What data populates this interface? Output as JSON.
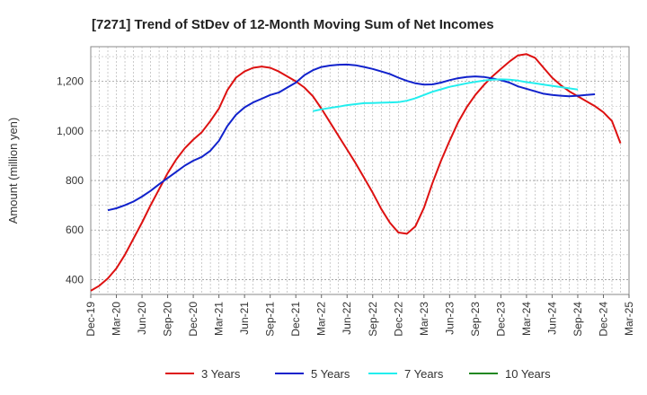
{
  "chart_data": {
    "type": "line",
    "title": "[7271]  Trend of StDev of 12-Month Moving Sum of Net Incomes",
    "ylabel": "Amount (million yen)",
    "xlabel": "",
    "ylim": [
      340,
      1340
    ],
    "yticks": [
      400,
      600,
      800,
      1000,
      1200
    ],
    "ytick_labels": [
      "400",
      "600",
      "800",
      "1,000",
      "1,200"
    ],
    "xlim": [
      "2019-12",
      "2025-03"
    ],
    "xtick_labels": [
      "Dec-19",
      "Mar-20",
      "Jun-20",
      "Sep-20",
      "Dec-20",
      "Mar-21",
      "Jun-21",
      "Sep-21",
      "Dec-21",
      "Mar-22",
      "Jun-22",
      "Sep-22",
      "Dec-22",
      "Mar-23",
      "Jun-23",
      "Sep-23",
      "Dec-23",
      "Mar-24",
      "Jun-24",
      "Sep-24",
      "Dec-24",
      "Mar-25"
    ],
    "grid": true,
    "legend_position": "bottom",
    "series": [
      {
        "name": "3 Years",
        "color": "#dd1111",
        "start": "2019-12",
        "values": [
          355,
          375,
          405,
          445,
          500,
          565,
          630,
          700,
          765,
          830,
          885,
          930,
          965,
          995,
          1040,
          1090,
          1165,
          1215,
          1240,
          1255,
          1260,
          1255,
          1240,
          1220,
          1200,
          1175,
          1140,
          1090,
          1035,
          980,
          925,
          870,
          810,
          750,
          685,
          630,
          590,
          585,
          615,
          690,
          790,
          880,
          960,
          1035,
          1095,
          1145,
          1185,
          1220,
          1250,
          1280,
          1305,
          1310,
          1295,
          1255,
          1215,
          1185,
          1160,
          1140,
          1120,
          1100,
          1075,
          1040,
          950
        ]
      },
      {
        "name": "5 Years",
        "color": "#1122cc",
        "start": "2020-02",
        "values": [
          680,
          688,
          700,
          715,
          735,
          758,
          785,
          810,
          835,
          860,
          880,
          895,
          920,
          960,
          1020,
          1065,
          1095,
          1115,
          1130,
          1145,
          1155,
          1175,
          1195,
          1225,
          1245,
          1258,
          1264,
          1267,
          1268,
          1265,
          1258,
          1250,
          1240,
          1230,
          1215,
          1202,
          1192,
          1187,
          1188,
          1195,
          1205,
          1213,
          1218,
          1220,
          1218,
          1212,
          1205,
          1195,
          1180,
          1170,
          1160,
          1150,
          1145,
          1142,
          1140,
          1142,
          1145,
          1148
        ]
      },
      {
        "name": "7 Years",
        "color": "#22eeee",
        "start": "2022-02",
        "values": [
          1080,
          1087,
          1093,
          1098,
          1104,
          1108,
          1112,
          1113,
          1114,
          1115,
          1116,
          1122,
          1132,
          1145,
          1158,
          1168,
          1178,
          1185,
          1192,
          1198,
          1203,
          1207,
          1208,
          1207,
          1203,
          1197,
          1192,
          1187,
          1182,
          1177,
          1172,
          1167
        ]
      },
      {
        "name": "10 Years",
        "color": "#228822",
        "start": "2019-12",
        "values": []
      }
    ]
  }
}
